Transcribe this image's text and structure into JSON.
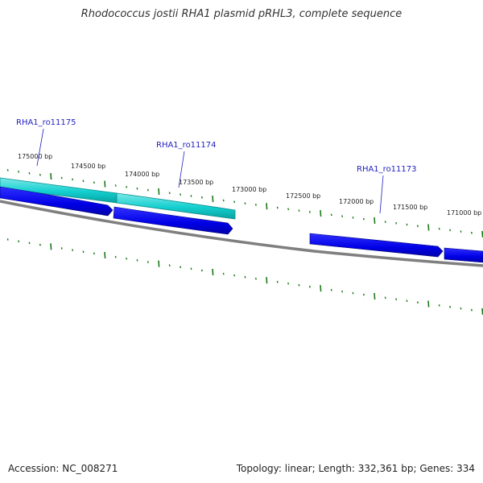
{
  "title": "Rhodococcus jostii RHA1 plasmid pRHL3, complete sequence",
  "footer": {
    "accession": "Accession: NC_008271",
    "summary": "Topology: linear; Length: 332,361 bp; Genes: 334"
  },
  "ticks": [
    {
      "label": "175000 bp"
    },
    {
      "label": "174500 bp"
    },
    {
      "label": "174000 bp"
    },
    {
      "label": "173500 bp"
    },
    {
      "label": "173000 bp"
    },
    {
      "label": "172500 bp"
    },
    {
      "label": "172000 bp"
    },
    {
      "label": "171500 bp"
    },
    {
      "label": "171000 bp"
    }
  ],
  "genes": [
    {
      "label": "RHA1_ro11175"
    },
    {
      "label": "RHA1_ro11174"
    },
    {
      "label": "RHA1_ro11173"
    }
  ],
  "colors": {
    "cds": "#0000dd",
    "gene": "#00cccc",
    "backbone": "#808080",
    "ticks": "#1a7a1a",
    "gene_label": "#1f1fbf"
  }
}
